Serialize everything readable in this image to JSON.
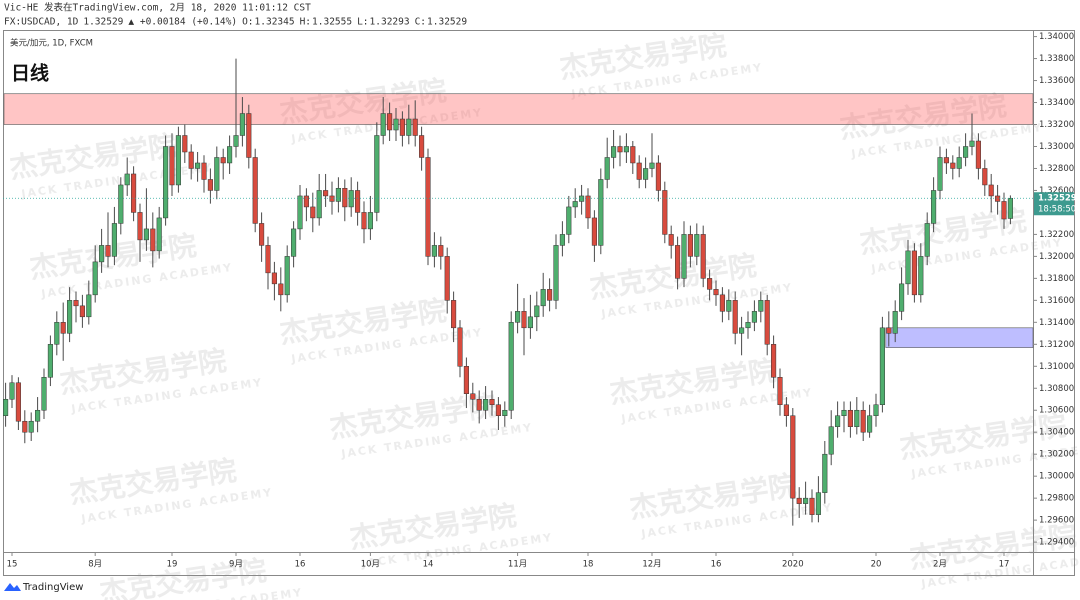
{
  "header": {
    "line1": "Vic-HE 发表在TradingView.com, 2月 18, 2020 11:01:12 CST",
    "symbol": "FX:USDCAD, 1D",
    "change": "▲ +0.00184 (+0.14%)",
    "o": "O:",
    "h": "H:",
    "l": "L:",
    "c": "C:"
  },
  "watermark": {
    "text": "杰克交易学院",
    "sub": "JACK TRADING ACADEMY"
  },
  "footer": {
    "brand": "TradingView"
  },
  "chart_data": {
    "type": "candlestick",
    "title": "日线",
    "subtitle": "美元/加元, 1D, FXCM",
    "countdown": "18:58:50",
    "up_color": "#4fae6e",
    "down_color": "#d84b3e",
    "wick_color": "#4a4a4a",
    "ylim": [
      1.2931,
      1.3406
    ],
    "yticks": [
      {
        "value": 1.34,
        "label": "1.34000"
      },
      {
        "value": 1.338,
        "label": "1.33800"
      },
      {
        "value": 1.336,
        "label": "1.33600"
      },
      {
        "value": 1.334,
        "label": "1.33400"
      },
      {
        "value": 1.332,
        "label": "1.33200"
      },
      {
        "value": 1.33,
        "label": "1.33000"
      },
      {
        "value": 1.328,
        "label": "1.32800"
      },
      {
        "value": 1.326,
        "label": "1.32600"
      },
      {
        "value": 1.324,
        "label": "1.32400"
      },
      {
        "value": 1.322,
        "label": "1.32200"
      },
      {
        "value": 1.32,
        "label": "1.32000"
      },
      {
        "value": 1.318,
        "label": "1.31800"
      },
      {
        "value": 1.316,
        "label": "1.31600"
      },
      {
        "value": 1.314,
        "label": "1.31400"
      },
      {
        "value": 1.312,
        "label": "1.31200"
      },
      {
        "value": 1.31,
        "label": "1.31000"
      },
      {
        "value": 1.308,
        "label": "1.30800"
      },
      {
        "value": 1.306,
        "label": "1.30600"
      },
      {
        "value": 1.304,
        "label": "1.30400"
      },
      {
        "value": 1.302,
        "label": "1.30200"
      },
      {
        "value": 1.3,
        "label": "1.30000"
      },
      {
        "value": 1.298,
        "label": "1.29800"
      },
      {
        "value": 1.296,
        "label": "1.29600"
      },
      {
        "value": 1.294,
        "label": "1.29400"
      }
    ],
    "zones": [
      {
        "top": 1.3348,
        "bottom": 1.332,
        "start": 0,
        "color": "rgba(255,90,90,0.35)"
      },
      {
        "top": 1.3135,
        "bottom": 1.3117,
        "start": 138,
        "color": "rgba(110,110,255,0.45)"
      }
    ],
    "categories": [
      null,
      "15",
      null,
      null,
      null,
      null,
      null,
      null,
      null,
      null,
      null,
      null,
      null,
      null,
      "8月",
      null,
      null,
      null,
      null,
      null,
      null,
      null,
      null,
      null,
      null,
      null,
      "19",
      null,
      null,
      null,
      null,
      null,
      null,
      null,
      null,
      null,
      "9月",
      null,
      null,
      null,
      null,
      null,
      null,
      null,
      null,
      null,
      "16",
      null,
      null,
      null,
      null,
      null,
      null,
      null,
      null,
      null,
      null,
      "10月",
      null,
      null,
      null,
      null,
      null,
      null,
      null,
      null,
      "14",
      null,
      null,
      null,
      null,
      null,
      null,
      null,
      null,
      null,
      null,
      null,
      null,
      null,
      "11月",
      null,
      null,
      null,
      null,
      null,
      null,
      null,
      null,
      null,
      null,
      "18",
      null,
      null,
      null,
      null,
      null,
      null,
      null,
      null,
      null,
      "12月",
      null,
      null,
      null,
      null,
      null,
      null,
      null,
      null,
      null,
      "16",
      null,
      null,
      null,
      null,
      null,
      null,
      null,
      null,
      null,
      null,
      null,
      "2020",
      null,
      null,
      null,
      null,
      null,
      null,
      null,
      null,
      null,
      null,
      null,
      null,
      "20",
      null,
      null,
      null,
      null,
      null,
      null,
      null,
      null,
      null,
      "2月",
      null,
      null,
      null,
      null,
      null,
      null,
      null,
      null,
      null,
      "17",
      null
    ],
    "ohlc": [
      [
        1.3055,
        1.3085,
        1.3045,
        1.307
      ],
      [
        1.307,
        1.3092,
        1.3062,
        1.3085
      ],
      [
        1.3085,
        1.309,
        1.3042,
        1.305
      ],
      [
        1.305,
        1.306,
        1.303,
        1.304
      ],
      [
        1.304,
        1.3058,
        1.3032,
        1.305
      ],
      [
        1.305,
        1.3072,
        1.304,
        1.306
      ],
      [
        1.306,
        1.3098,
        1.3052,
        1.309
      ],
      [
        1.309,
        1.3128,
        1.3082,
        1.312
      ],
      [
        1.312,
        1.315,
        1.311,
        1.314
      ],
      [
        1.314,
        1.3158,
        1.3105,
        1.313
      ],
      [
        1.313,
        1.3172,
        1.3122,
        1.316
      ],
      [
        1.316,
        1.3168,
        1.314,
        1.3155
      ],
      [
        1.3155,
        1.3165,
        1.3135,
        1.3145
      ],
      [
        1.3145,
        1.3178,
        1.3138,
        1.3165
      ],
      [
        1.3165,
        1.321,
        1.3158,
        1.3195
      ],
      [
        1.3195,
        1.3225,
        1.3185,
        1.321
      ],
      [
        1.321,
        1.324,
        1.319,
        1.32
      ],
      [
        1.32,
        1.3245,
        1.3192,
        1.323
      ],
      [
        1.323,
        1.3272,
        1.322,
        1.3265
      ],
      [
        1.3265,
        1.329,
        1.3255,
        1.3275
      ],
      [
        1.3275,
        1.3282,
        1.3232,
        1.324
      ],
      [
        1.324,
        1.3248,
        1.3195,
        1.3215
      ],
      [
        1.3215,
        1.3262,
        1.3205,
        1.3225
      ],
      [
        1.3225,
        1.324,
        1.319,
        1.3205
      ],
      [
        1.3205,
        1.3245,
        1.3198,
        1.3235
      ],
      [
        1.3235,
        1.331,
        1.3228,
        1.33
      ],
      [
        1.33,
        1.3312,
        1.3255,
        1.3265
      ],
      [
        1.3265,
        1.3318,
        1.3258,
        1.331
      ],
      [
        1.331,
        1.332,
        1.3285,
        1.3295
      ],
      [
        1.3295,
        1.3302,
        1.327,
        1.328
      ],
      [
        1.328,
        1.3295,
        1.3268,
        1.3285
      ],
      [
        1.3285,
        1.3292,
        1.3258,
        1.327
      ],
      [
        1.327,
        1.328,
        1.3248,
        1.326
      ],
      [
        1.326,
        1.33,
        1.3252,
        1.329
      ],
      [
        1.329,
        1.3298,
        1.327,
        1.3285
      ],
      [
        1.3285,
        1.331,
        1.3275,
        1.33
      ],
      [
        1.33,
        1.338,
        1.329,
        1.331
      ],
      [
        1.331,
        1.3345,
        1.33,
        1.333
      ],
      [
        1.333,
        1.3338,
        1.328,
        1.329
      ],
      [
        1.329,
        1.3298,
        1.3222,
        1.323
      ],
      [
        1.323,
        1.324,
        1.3195,
        1.321
      ],
      [
        1.321,
        1.3218,
        1.317,
        1.3185
      ],
      [
        1.3185,
        1.3195,
        1.316,
        1.3175
      ],
      [
        1.3175,
        1.319,
        1.315,
        1.3165
      ],
      [
        1.3165,
        1.321,
        1.3158,
        1.32
      ],
      [
        1.32,
        1.3232,
        1.319,
        1.3225
      ],
      [
        1.3225,
        1.3265,
        1.3215,
        1.3255
      ],
      [
        1.3255,
        1.3262,
        1.3232,
        1.3245
      ],
      [
        1.3245,
        1.3258,
        1.3222,
        1.3235
      ],
      [
        1.3235,
        1.3275,
        1.3228,
        1.326
      ],
      [
        1.326,
        1.3275,
        1.3245,
        1.3255
      ],
      [
        1.3255,
        1.3268,
        1.3238,
        1.325
      ],
      [
        1.325,
        1.3272,
        1.324,
        1.3262
      ],
      [
        1.3262,
        1.327,
        1.3232,
        1.3245
      ],
      [
        1.3245,
        1.3272,
        1.3236,
        1.326
      ],
      [
        1.326,
        1.3268,
        1.3228,
        1.324
      ],
      [
        1.324,
        1.325,
        1.3212,
        1.3225
      ],
      [
        1.3225,
        1.3255,
        1.3215,
        1.324
      ],
      [
        1.324,
        1.3322,
        1.3232,
        1.331
      ],
      [
        1.331,
        1.3345,
        1.3302,
        1.333
      ],
      [
        1.333,
        1.334,
        1.3305,
        1.3315
      ],
      [
        1.3315,
        1.3335,
        1.3305,
        1.3325
      ],
      [
        1.3325,
        1.3332,
        1.33,
        1.331
      ],
      [
        1.331,
        1.3338,
        1.3302,
        1.3325
      ],
      [
        1.3325,
        1.3342,
        1.33,
        1.331
      ],
      [
        1.331,
        1.3318,
        1.3278,
        1.329
      ],
      [
        1.329,
        1.3298,
        1.3192,
        1.32
      ],
      [
        1.32,
        1.3222,
        1.319,
        1.321
      ],
      [
        1.321,
        1.3218,
        1.3188,
        1.32
      ],
      [
        1.32,
        1.3208,
        1.3148,
        1.316
      ],
      [
        1.316,
        1.3168,
        1.3122,
        1.3135
      ],
      [
        1.3135,
        1.3142,
        1.309,
        1.31
      ],
      [
        1.31,
        1.3108,
        1.3062,
        1.3075
      ],
      [
        1.3075,
        1.3085,
        1.3058,
        1.307
      ],
      [
        1.307,
        1.3078,
        1.3048,
        1.306
      ],
      [
        1.306,
        1.3082,
        1.3052,
        1.307
      ],
      [
        1.307,
        1.3078,
        1.3055,
        1.3065
      ],
      [
        1.3065,
        1.3072,
        1.3042,
        1.3055
      ],
      [
        1.3055,
        1.3068,
        1.3045,
        1.306
      ],
      [
        1.306,
        1.315,
        1.3052,
        1.314
      ],
      [
        1.314,
        1.3175,
        1.313,
        1.315
      ],
      [
        1.315,
        1.3162,
        1.311,
        1.3135
      ],
      [
        1.3135,
        1.3165,
        1.3125,
        1.3145
      ],
      [
        1.3145,
        1.3168,
        1.3132,
        1.3155
      ],
      [
        1.3155,
        1.3185,
        1.3145,
        1.317
      ],
      [
        1.317,
        1.318,
        1.315,
        1.316
      ],
      [
        1.316,
        1.322,
        1.3152,
        1.321
      ],
      [
        1.321,
        1.3232,
        1.32,
        1.322
      ],
      [
        1.322,
        1.3255,
        1.3212,
        1.3245
      ],
      [
        1.3245,
        1.3262,
        1.3235,
        1.325
      ],
      [
        1.325,
        1.3265,
        1.3238,
        1.3255
      ],
      [
        1.3255,
        1.3262,
        1.3225,
        1.3235
      ],
      [
        1.3235,
        1.3242,
        1.3195,
        1.321
      ],
      [
        1.321,
        1.328,
        1.3202,
        1.327
      ],
      [
        1.327,
        1.3308,
        1.3262,
        1.329
      ],
      [
        1.329,
        1.3315,
        1.328,
        1.33
      ],
      [
        1.33,
        1.331,
        1.3282,
        1.3295
      ],
      [
        1.3295,
        1.3312,
        1.3285,
        1.33
      ],
      [
        1.33,
        1.3305,
        1.3275,
        1.3285
      ],
      [
        1.3285,
        1.3292,
        1.3262,
        1.327
      ],
      [
        1.327,
        1.329,
        1.3262,
        1.328
      ],
      [
        1.328,
        1.3312,
        1.3272,
        1.3285
      ],
      [
        1.3285,
        1.3292,
        1.325,
        1.326
      ],
      [
        1.326,
        1.3268,
        1.3212,
        1.322
      ],
      [
        1.322,
        1.3228,
        1.3198,
        1.321
      ],
      [
        1.321,
        1.3218,
        1.317,
        1.318
      ],
      [
        1.318,
        1.3232,
        1.3172,
        1.322
      ],
      [
        1.322,
        1.3228,
        1.319,
        1.32
      ],
      [
        1.32,
        1.323,
        1.3192,
        1.322
      ],
      [
        1.322,
        1.3228,
        1.3172,
        1.318
      ],
      [
        1.318,
        1.3188,
        1.316,
        1.317
      ],
      [
        1.317,
        1.3178,
        1.3155,
        1.3165
      ],
      [
        1.3165,
        1.3172,
        1.314,
        1.315
      ],
      [
        1.315,
        1.317,
        1.3142,
        1.316
      ],
      [
        1.316,
        1.3168,
        1.312,
        1.313
      ],
      [
        1.313,
        1.3145,
        1.311,
        1.3135
      ],
      [
        1.3135,
        1.315,
        1.3125,
        1.314
      ],
      [
        1.314,
        1.316,
        1.3132,
        1.315
      ],
      [
        1.315,
        1.3168,
        1.314,
        1.316
      ],
      [
        1.316,
        1.3165,
        1.311,
        1.312
      ],
      [
        1.312,
        1.3128,
        1.308,
        1.309
      ],
      [
        1.309,
        1.3098,
        1.3055,
        1.3065
      ],
      [
        1.3065,
        1.3072,
        1.3045,
        1.3055
      ],
      [
        1.3055,
        1.3062,
        1.2955,
        1.298
      ],
      [
        1.298,
        1.299,
        1.2962,
        1.2975
      ],
      [
        1.2975,
        1.2995,
        1.2965,
        1.298
      ],
      [
        1.298,
        1.2988,
        1.2958,
        1.2965
      ],
      [
        1.2965,
        1.3,
        1.2958,
        1.2985
      ],
      [
        1.2985,
        1.3032,
        1.2975,
        1.302
      ],
      [
        1.302,
        1.306,
        1.301,
        1.3045
      ],
      [
        1.3045,
        1.3068,
        1.3035,
        1.3055
      ],
      [
        1.3055,
        1.3068,
        1.304,
        1.306
      ],
      [
        1.306,
        1.3068,
        1.3035,
        1.3045
      ],
      [
        1.3045,
        1.3072,
        1.3038,
        1.306
      ],
      [
        1.306,
        1.3068,
        1.3032,
        1.304
      ],
      [
        1.304,
        1.3065,
        1.3035,
        1.3055
      ],
      [
        1.3055,
        1.3075,
        1.3045,
        1.3065
      ],
      [
        1.3065,
        1.3145,
        1.3058,
        1.3135
      ],
      [
        1.3135,
        1.315,
        1.3118,
        1.313
      ],
      [
        1.313,
        1.316,
        1.3122,
        1.315
      ],
      [
        1.315,
        1.319,
        1.3142,
        1.3175
      ],
      [
        1.3175,
        1.3215,
        1.3165,
        1.3205
      ],
      [
        1.3205,
        1.3212,
        1.3158,
        1.3165
      ],
      [
        1.3165,
        1.3212,
        1.3158,
        1.32
      ],
      [
        1.32,
        1.324,
        1.3192,
        1.323
      ],
      [
        1.323,
        1.3272,
        1.3222,
        1.326
      ],
      [
        1.326,
        1.33,
        1.3252,
        1.329
      ],
      [
        1.329,
        1.3298,
        1.3275,
        1.3285
      ],
      [
        1.3285,
        1.3292,
        1.327,
        1.328
      ],
      [
        1.328,
        1.33,
        1.3272,
        1.329
      ],
      [
        1.329,
        1.3312,
        1.3282,
        1.33
      ],
      [
        1.33,
        1.333,
        1.3292,
        1.3305
      ],
      [
        1.3305,
        1.3312,
        1.327,
        1.328
      ],
      [
        1.328,
        1.3288,
        1.3255,
        1.3265
      ],
      [
        1.3265,
        1.3275,
        1.324,
        1.3255
      ],
      [
        1.3255,
        1.3265,
        1.3238,
        1.325
      ],
      [
        1.325,
        1.3258,
        1.3225,
        1.3234
      ],
      [
        1.32345,
        1.32555,
        1.32293,
        1.32529
      ]
    ]
  }
}
